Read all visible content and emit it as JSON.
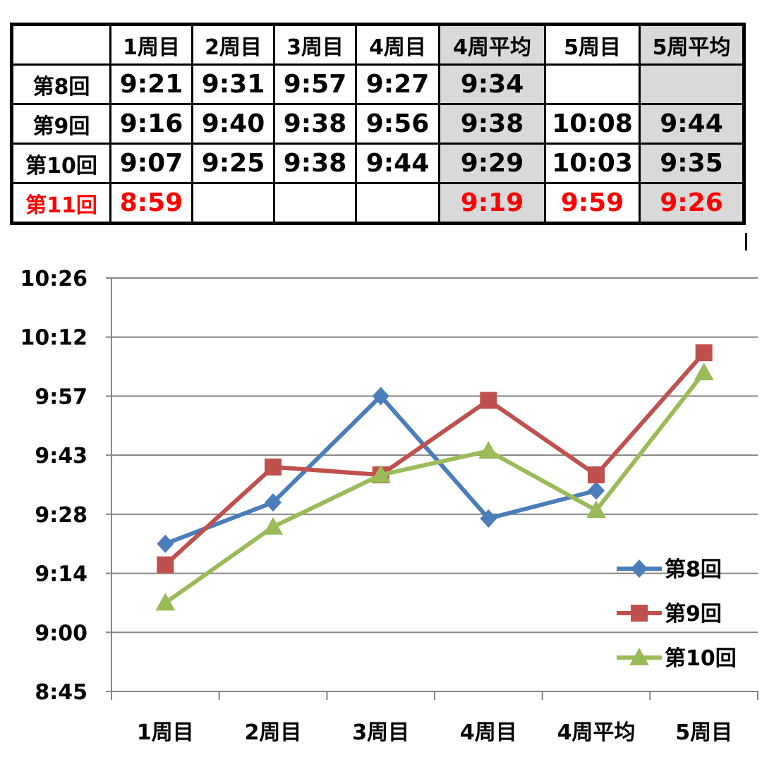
{
  "table": {
    "headers": [
      "",
      "1周目",
      "2周目",
      "3周目",
      "4周目",
      "4周平均",
      "5周目",
      "5周平均"
    ],
    "rows": [
      {
        "label": "第8回",
        "cells": [
          "9:21",
          "9:31",
          "9:57",
          "9:27",
          "9:34",
          "",
          ""
        ]
      },
      {
        "label": "第9回",
        "cells": [
          "9:16",
          "9:40",
          "9:38",
          "9:56",
          "9:38",
          "10:08",
          "9:44"
        ]
      },
      {
        "label": "第10回",
        "cells": [
          "9:07",
          "9:25",
          "9:38",
          "9:44",
          "9:29",
          "10:03",
          "9:35"
        ]
      },
      {
        "label": "第11回",
        "cells": [
          "8:59",
          "",
          "",
          "",
          "9:19",
          "9:59",
          "9:26"
        ],
        "highlight_color": "#ff0000"
      }
    ],
    "average_fill": "#d9d9d9"
  },
  "chart_data": {
    "type": "line",
    "categories": [
      "1周目",
      "2周目",
      "3周目",
      "4周目",
      "4周平均",
      "5周目"
    ],
    "y_tick_labels": [
      "8:45",
      "9:00",
      "9:14",
      "9:28",
      "9:43",
      "9:57",
      "10:12",
      "10:26"
    ],
    "ylim": [
      "8:45",
      "10:26"
    ],
    "grid": true,
    "legend_position": "bottom-right",
    "series": [
      {
        "name": "第8回",
        "values": [
          "9:21",
          "9:31",
          "9:57",
          "9:27",
          "9:34",
          null
        ],
        "color": "#4a7ebb",
        "marker": "diamond"
      },
      {
        "name": "第9回",
        "values": [
          "9:16",
          "9:40",
          "9:38",
          "9:56",
          "9:38",
          "10:08"
        ],
        "color": "#c0504d",
        "marker": "square"
      },
      {
        "name": "第10回",
        "values": [
          "9:07",
          "9:25",
          "9:38",
          "9:44",
          "9:29",
          "10:03"
        ],
        "color": "#9bbb59",
        "marker": "triangle"
      }
    ]
  }
}
